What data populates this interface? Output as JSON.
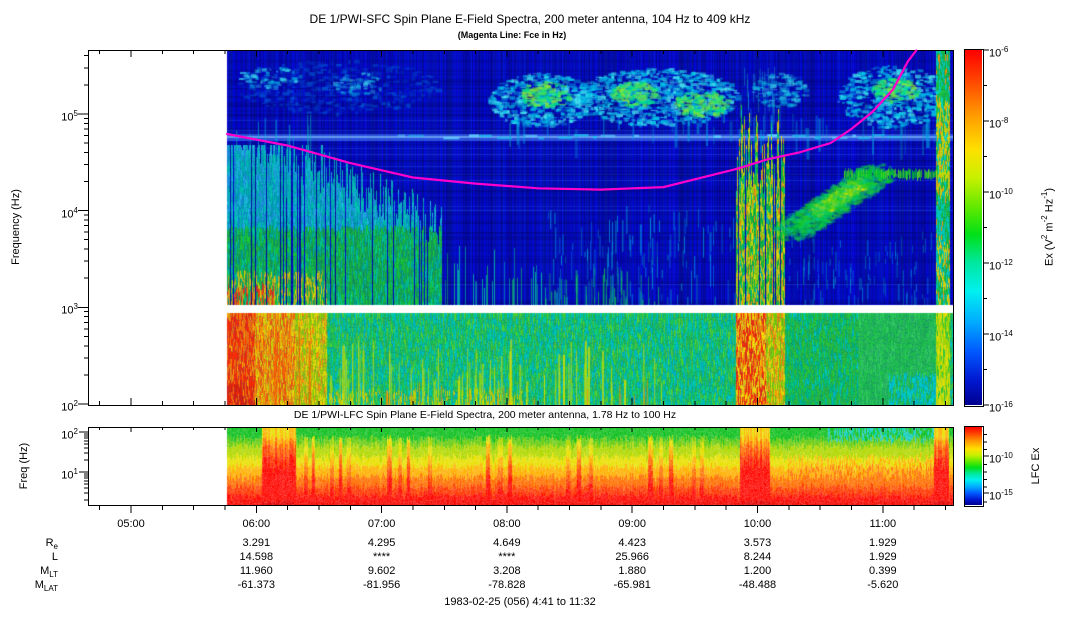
{
  "figure": {
    "sfc_title": "DE 1/PWI-SFC  Spin Plane E-Field Spectra, 200 meter antenna, 104 Hz to 409 kHz",
    "sfc_subtitle": "(Magenta Line: Fce in Hz)",
    "lfc_title": "DE 1/PWI-LFC  Spin Plane E-Field Spectra, 200 meter antenna, 1.78 Hz to 100 Hz",
    "footer": "1983-02-25 (056) 4:41 to 11:32"
  },
  "chart_data": [
    {
      "type": "heatmap",
      "panel": "SFC",
      "title": "DE 1/PWI-SFC Spin Plane E-Field Spectra, 200 meter antenna, 104 Hz to 409 kHz",
      "xlabel": "",
      "ylabel": "Frequency (Hz)",
      "y_scale": "log",
      "y_range_hz": [
        104,
        409000
      ],
      "y_ticks": [
        "10^5",
        "10^4",
        "10^3",
        "10^2"
      ],
      "x_start": "04:41",
      "x_end": "11:32",
      "x_ticks": [
        "05:00",
        "06:00",
        "07:00",
        "08:00",
        "09:00",
        "10:00",
        "11:00"
      ],
      "x_minor_tick_minutes": 15,
      "data_start": "05:46",
      "instrument_band_gap_hz": [
        900,
        1100
      ],
      "colorbar": {
        "label": "Ex (V^2 m^-2 Hz^-1)",
        "ticks": [
          "10^-6",
          "10^-8",
          "10^-10",
          "10^-12",
          "10^-14",
          "10^-16"
        ],
        "top": "10^-6",
        "bottom": "10^-16"
      },
      "fce_line": {
        "label": "Fce in Hz",
        "color": "#FF00CC",
        "points_time_hz": [
          [
            "05:46",
            62000
          ],
          [
            "06:15",
            47000
          ],
          [
            "06:45",
            31000
          ],
          [
            "07:15",
            22000
          ],
          [
            "07:45",
            19000
          ],
          [
            "08:15",
            17000
          ],
          [
            "08:45",
            16500
          ],
          [
            "09:15",
            17500
          ],
          [
            "09:50",
            27000
          ],
          [
            "10:05",
            34000
          ],
          [
            "10:20",
            40000
          ],
          [
            "10:35",
            50000
          ],
          [
            "10:45",
            70000
          ],
          [
            "10:55",
            105000
          ],
          [
            "11:05",
            180000
          ],
          [
            "11:12",
            350000
          ],
          [
            "11:16",
            460000
          ]
        ]
      },
      "features": [
        {
          "time": "05:46-07:40",
          "freq_hz": [
            104,
            10000
          ],
          "intensity": "strong broadband ELF/VLF turbulence, green/cyan with yellow-orange-red below 1 kHz near 05:50-06:30"
        },
        {
          "time": "05:50-09:40",
          "freq_hz": [
            100000,
            400000
          ],
          "intensity": "patchy cyan/green auroral kilometric radiation, brightest 08:00-09:30"
        },
        {
          "time": "08:00-11:30",
          "freq_hz": [
            45000,
            60000
          ],
          "intensity": "narrow light-blue band with cyan dashes near 50 kHz"
        },
        {
          "time": "09:52-10:07",
          "freq_hz": [
            104,
            400000
          ],
          "intensity": "intense broadband burst, green/yellow, orange-red below 1 kHz"
        },
        {
          "time": "10:10-10:50",
          "freq_hz": [
            4000,
            20000
          ],
          "intensity": "rising green emission band with yellow core"
        },
        {
          "time": "11:20-11:30",
          "freq_hz": [
            104,
            400000
          ],
          "intensity": "broadband perigee noise stripe, green/yellow"
        },
        {
          "time": "05:46-11:32",
          "freq_hz": [
            104,
            900
          ],
          "intensity": "continuous cyan/green band below the 1 kHz instrument gap"
        }
      ]
    },
    {
      "type": "heatmap",
      "panel": "LFC",
      "title": "DE 1/PWI-LFC Spin Plane E-Field Spectra, 200 meter antenna, 1.78 Hz to 100 Hz",
      "xlabel": "",
      "ylabel": "Freq (Hz)",
      "y_scale": "log",
      "y_range_hz": [
        1.78,
        100
      ],
      "y_ticks": [
        "10^2",
        "10^1"
      ],
      "x_start": "04:41",
      "x_end": "11:32",
      "x_ticks": [
        "05:00",
        "06:00",
        "07:00",
        "08:00",
        "09:00",
        "10:00",
        "11:00"
      ],
      "x_minor_tick_minutes": 15,
      "data_start": "05:46",
      "colorbar": {
        "label": "LFC Ex",
        "ticks": [
          "10^-10",
          "10^-15"
        ]
      },
      "features": [
        {
          "time": "05:46-11:32",
          "freq_hz": [
            1.78,
            100
          ],
          "intensity": "banded spectrum, intensity rising toward low frequency: green near 100 Hz through yellow and orange to saturated red below ~5 Hz"
        },
        {
          "time": "06:05-06:20",
          "freq_hz": [
            1.78,
            100
          ],
          "intensity": "saturated red broadband burst"
        },
        {
          "time": "09:52-10:05",
          "freq_hz": [
            1.78,
            100
          ],
          "intensity": "red broadband burst"
        },
        {
          "time": "11:20-11:32",
          "freq_hz": [
            1.78,
            100
          ],
          "intensity": "red broadband burst near perigee"
        },
        {
          "time": "09:30-11:00",
          "freq_hz": [
            50,
            100
          ],
          "intensity": "cyan/green quieter patches at top of band"
        }
      ]
    }
  ],
  "ephemeris": {
    "columns": [
      "05:00",
      "06:00",
      "07:00",
      "08:00",
      "09:00",
      "10:00",
      "11:00"
    ],
    "row_labels": [
      {
        "text": "R",
        "sub": "e"
      },
      {
        "text": "L",
        "sub": ""
      },
      {
        "text": "M",
        "sub": "LT"
      },
      {
        "text": "M",
        "sub": "LAT"
      }
    ],
    "rows": [
      [
        "",
        "3.291",
        "4.295",
        "4.649",
        "4.423",
        "3.573",
        "1.929"
      ],
      [
        "",
        "14.598",
        "****",
        "****",
        "25.966",
        "8.244",
        "1.929"
      ],
      [
        "",
        "11.960",
        "9.602",
        "3.208",
        "1.880",
        "1.200",
        "0.399"
      ],
      [
        "",
        "-61.373",
        "-81.956",
        "-78.828",
        "-65.981",
        "-48.488",
        "-5.620"
      ]
    ]
  }
}
